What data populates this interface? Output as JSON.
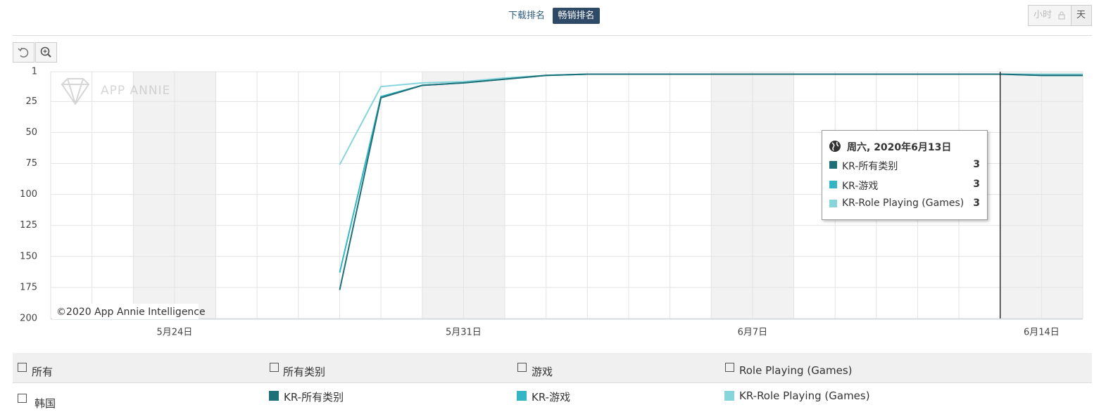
{
  "tabs": [
    "下载排名",
    "畅销排名"
  ],
  "granularity": [
    "小时",
    "天"
  ],
  "watermark": "APP ANNIE",
  "credit": "©2020 App Annie Intelligence",
  "filters": {
    "all": "所有",
    "categories": [
      "所有类别",
      "游戏",
      "Role Playing (Games)"
    ],
    "country": "韩国"
  },
  "chart_data": {
    "type": "line",
    "tooltip_title": "周六, 2020年6月13日",
    "categories": [
      null,
      null,
      null,
      "5月24日",
      null,
      null,
      null,
      null,
      null,
      null,
      "5月31日",
      null,
      null,
      null,
      null,
      null,
      null,
      "6月7日",
      null,
      null,
      null,
      null,
      null,
      null,
      "6月14日",
      null
    ],
    "series": [
      {
        "name": "KR-所有类别",
        "color": "#1d6f78",
        "values": [
          null,
          null,
          null,
          null,
          null,
          null,
          null,
          177,
          22,
          12,
          10,
          7,
          4,
          3,
          3,
          3,
          3,
          3,
          3,
          3,
          3,
          3,
          3,
          3,
          4,
          4
        ]
      },
      {
        "name": "KR-游戏",
        "color": "#35b6c4",
        "values": [
          null,
          null,
          null,
          null,
          null,
          null,
          null,
          163,
          21,
          12,
          10,
          7,
          4,
          3,
          3,
          3,
          3,
          3,
          3,
          3,
          3,
          3,
          3,
          3,
          4,
          4
        ]
      },
      {
        "name": "KR-Role Playing (Games)",
        "color": "#86d5dc",
        "values": [
          null,
          null,
          null,
          null,
          null,
          null,
          null,
          76,
          13,
          10,
          9,
          6,
          4,
          3,
          3,
          3,
          3,
          3,
          3,
          3,
          3,
          3,
          3,
          3,
          3,
          3
        ]
      }
    ],
    "ylim": [
      1,
      200
    ],
    "yticks": [
      1,
      25,
      50,
      75,
      100,
      125,
      150,
      175,
      200
    ],
    "y_inverted": true,
    "grid": true
  }
}
